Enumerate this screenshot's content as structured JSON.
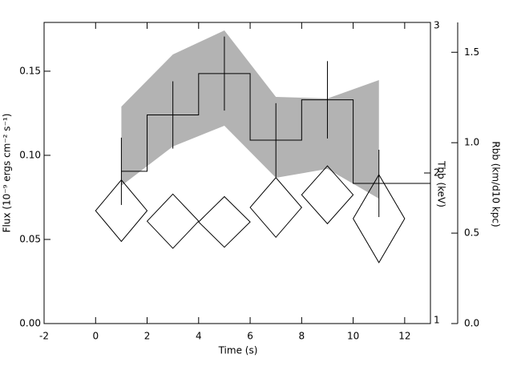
{
  "chart_data": {
    "type": "step",
    "xlabel": "Time (s)",
    "ylabel": "Flux (10⁻⁹ ergs cm⁻² s⁻¹)",
    "y2label": "Tbb (keV)",
    "y3label": "Rbb (km/d10 kpc)",
    "xlim": [
      -2,
      13
    ],
    "xticks": [
      -2,
      0,
      2,
      4,
      6,
      8,
      10,
      12
    ],
    "ylim": [
      0,
      0.179
    ],
    "yticks": [
      {
        "value": 0,
        "label": "0.00"
      },
      {
        "value": 0.05,
        "label": "0.05"
      },
      {
        "value": 0.1,
        "label": "0.10"
      },
      {
        "value": 0.15,
        "label": "0.15"
      }
    ],
    "y2lim": [
      1,
      3
    ],
    "y2ticks": [
      1,
      2,
      3
    ],
    "y3lim": [
      0,
      1.665
    ],
    "y3ticks": [
      {
        "value": 0,
        "label": "0.0"
      },
      {
        "value": 0.5,
        "label": "0.5"
      },
      {
        "value": 1,
        "label": "1.0"
      },
      {
        "value": 1.5,
        "label": "1.5"
      }
    ],
    "flux": {
      "color": "#000000",
      "bins": [
        1,
        2,
        4,
        6,
        8,
        10,
        13
      ],
      "values": [
        0.0905,
        0.124,
        0.1486,
        0.109,
        0.133,
        0.0833
      ],
      "x": [
        1,
        3,
        5,
        7,
        9,
        11
      ],
      "errors": [
        0.02,
        0.02,
        0.022,
        0.022,
        0.023,
        0.02
      ]
    },
    "tbb": {
      "axis": "y2",
      "color": "#b3b3b3",
      "x": [
        1,
        3,
        5,
        7,
        9,
        11
      ],
      "upper": [
        2.441,
        2.787,
        2.947,
        2.505,
        2.495,
        2.617
      ],
      "lower": [
        1.915,
        2.176,
        2.314,
        1.968,
        2.027,
        1.83
      ]
    },
    "rbb": {
      "axis": "y3",
      "color": "#000000",
      "x": [
        1,
        3,
        5,
        7,
        9,
        11
      ],
      "xerr": [
        1,
        1,
        1,
        1,
        1,
        1
      ],
      "values": [
        0.624,
        0.566,
        0.562,
        0.642,
        0.712,
        0.58
      ],
      "errors": [
        0.17,
        0.15,
        0.14,
        0.165,
        0.16,
        0.243
      ]
    }
  }
}
